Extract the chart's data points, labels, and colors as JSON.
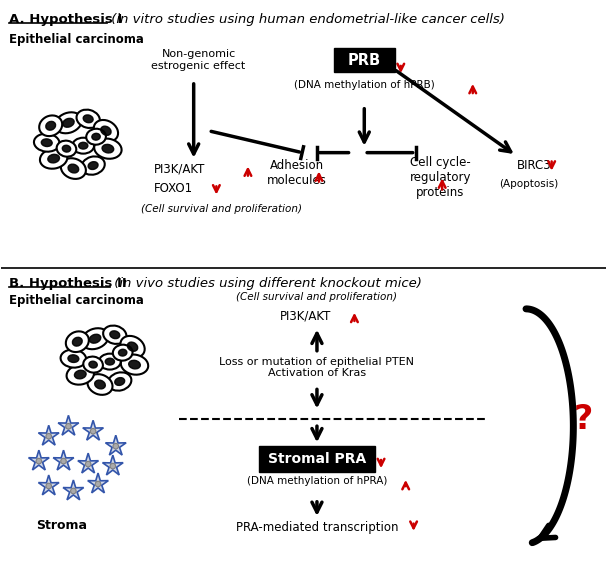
{
  "fig_width": 6.13,
  "fig_height": 5.65,
  "bg_color": "#ffffff",
  "black": "#000000",
  "red": "#cc0000",
  "blue": "#3355aa",
  "section_A_title": "A. Hypothesis I",
  "section_A_subtitle": " (in vitro studies using human endometrial-like cancer cells)",
  "section_B_title": "B. Hypothesis II",
  "section_B_subtitle": " (in vivo studies using different knockout mice)",
  "epi_label_A": "Epithelial carcinoma",
  "epi_label_B": "Epithelial carcinoma",
  "stroma_label": "Stroma",
  "non_genomic": "Non-genomic\nestrogenic effect",
  "PRB_label": "PRB",
  "PRB_sub": "(DNA methylation of hPRB)",
  "PI3K_AKT_A": "PI3K/AKT",
  "FOXO1": "FOXO1",
  "cell_survival_A": "(Cell survival and proliferation)",
  "adhesion": "Adhesion\nmolecules",
  "cell_cycle": "Cell cycle-\nregulatory\nproteins",
  "BIRC3": "BIRC3",
  "apoptosis": "(Apoptosis)",
  "cell_survival_B": "(Cell survival and proliferation)",
  "PI3K_AKT_B": "PI3K/AKT",
  "loss_mutation": "Loss or mutation of epithelial PTEN\nActivation of Kras",
  "stromal_PRA": "Stromal PRA",
  "DNA_meth_B": "(DNA methylation of hPRA)",
  "PRA_transcript": "PRA-mediated transcription",
  "question_mark": "?"
}
